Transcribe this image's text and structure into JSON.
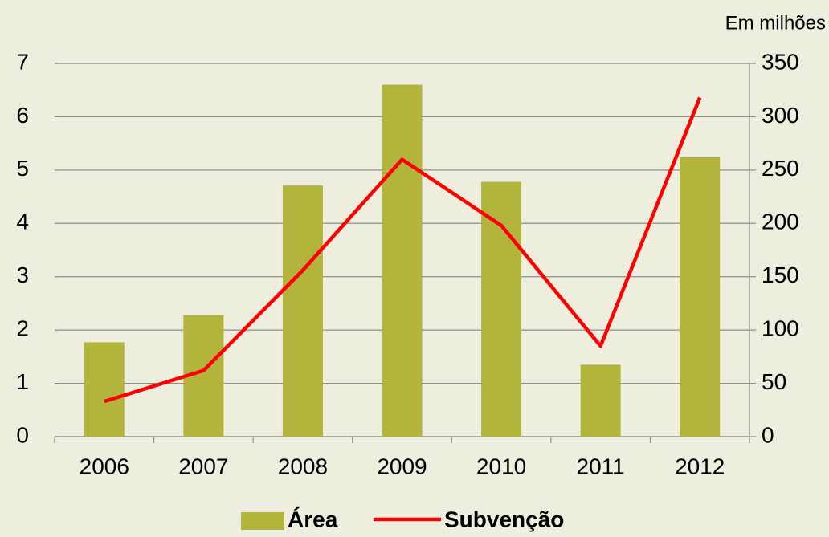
{
  "chart_data": {
    "type": "bar",
    "unit_note": "Em milhões",
    "categories": [
      "2006",
      "2007",
      "2008",
      "2009",
      "2010",
      "2011",
      "2012"
    ],
    "series": [
      {
        "name": "Área",
        "type": "bar",
        "color": "#b3b43c",
        "values": [
          1.77,
          2.28,
          4.71,
          6.6,
          4.78,
          1.35,
          5.24
        ]
      },
      {
        "name": "Subvenção",
        "type": "line",
        "axis": "y2",
        "color": "#ff0000",
        "values": [
          33,
          62,
          156,
          260,
          198,
          85,
          318
        ]
      }
    ],
    "ylim": [
      0,
      7
    ],
    "yticks": [
      0,
      1,
      2,
      3,
      4,
      5,
      6,
      7
    ],
    "y2lim": [
      0,
      350
    ],
    "y2ticks": [
      0,
      50,
      100,
      150,
      200,
      250,
      300,
      350
    ],
    "grid": true,
    "legend": "bottom"
  }
}
